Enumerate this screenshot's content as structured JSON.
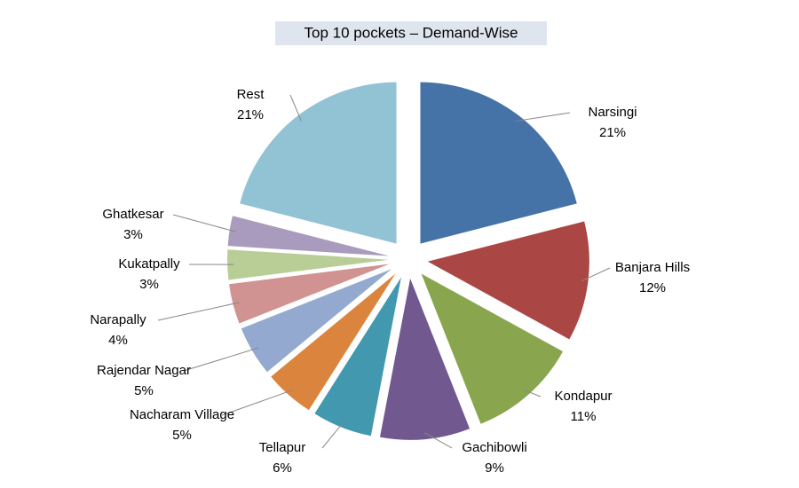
{
  "chart_data": {
    "type": "pie",
    "title": "Top 10 pockets – Demand-Wise",
    "categories": [
      "Narsingi",
      "Banjara Hills",
      "Kondapur",
      "Gachibowli",
      "Tellapur",
      "Nacharam Village",
      "Rajendar Nagar",
      "Narapally",
      "Kukatpally",
      "Ghatkesar",
      "Rest"
    ],
    "values": [
      21,
      12,
      11,
      9,
      6,
      5,
      5,
      4,
      3,
      3,
      21
    ],
    "value_labels": [
      "21%",
      "12%",
      "11%",
      "9%",
      "6%",
      "5%",
      "5%",
      "4%",
      "3%",
      "3%",
      "21%"
    ],
    "colors": [
      "#4572a7",
      "#aa4643",
      "#89a54e",
      "#71588f",
      "#4198af",
      "#db843d",
      "#93a9cf",
      "#d19392",
      "#b9cd96",
      "#a99bbd",
      "#92c3d5"
    ]
  }
}
